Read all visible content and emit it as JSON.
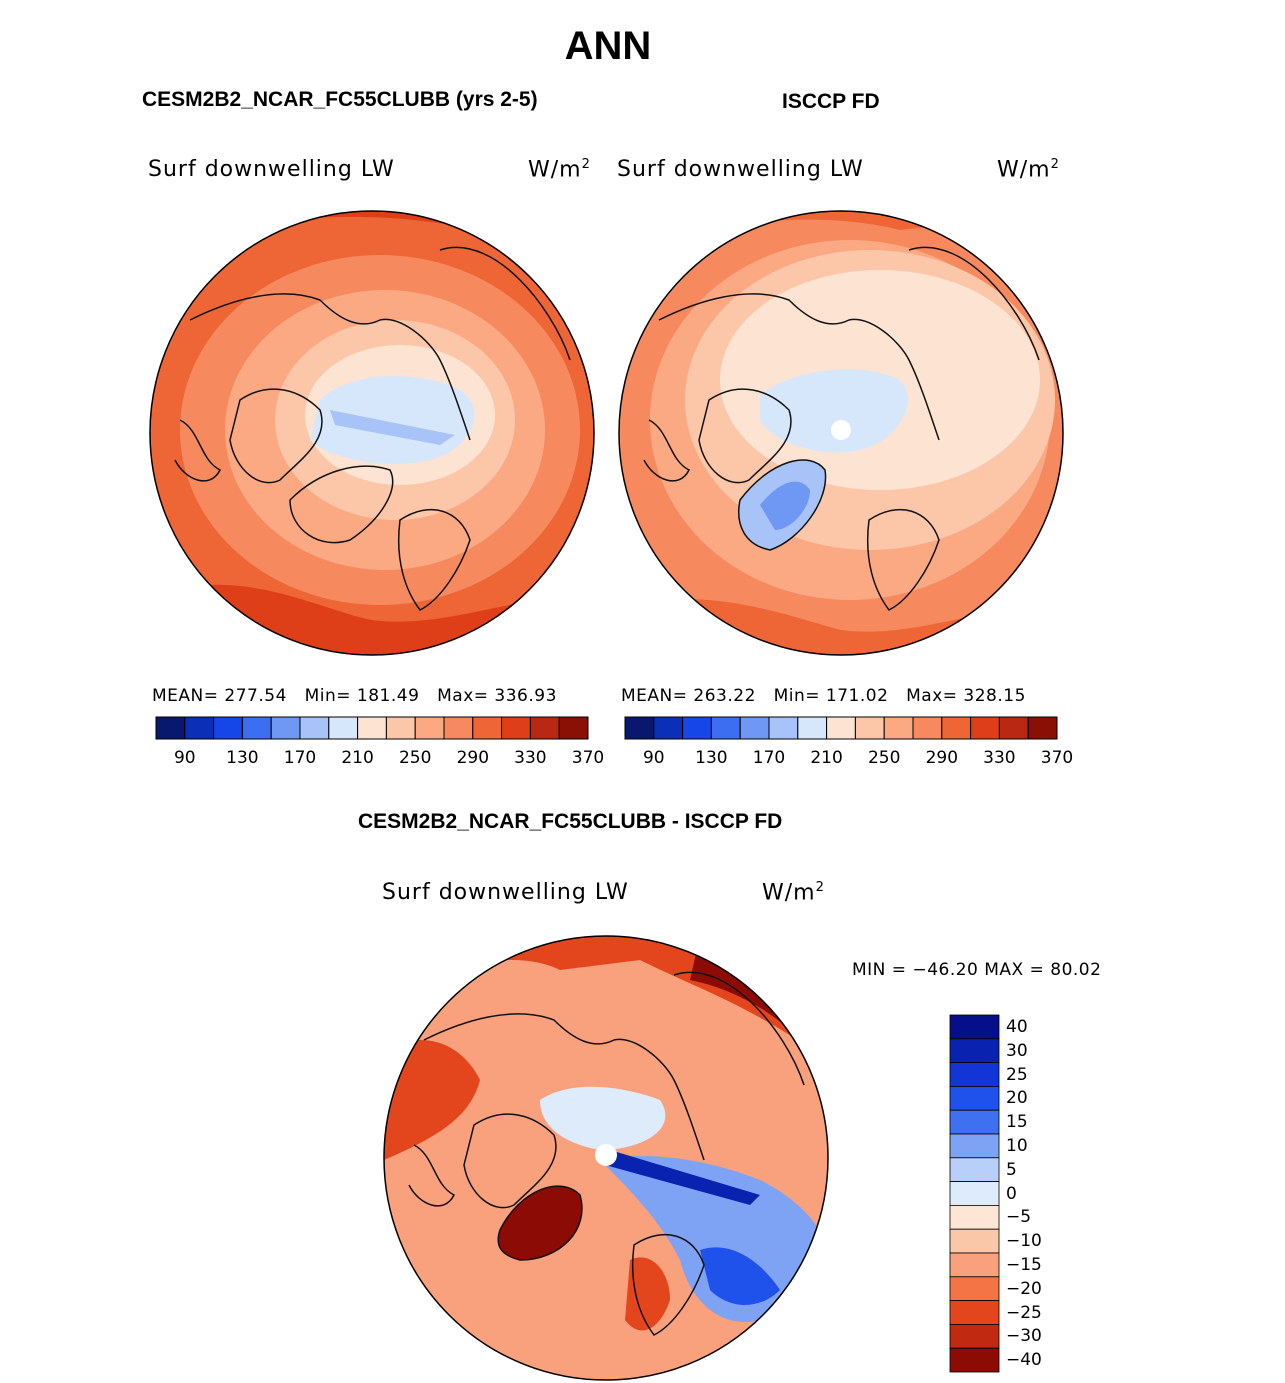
{
  "figure": {
    "season": "ANN",
    "test_title": "CESM2B2_NCAR_FC55CLUBB (yrs 2-5)",
    "ref_title": "ISCCP FD",
    "diff_title": "CESM2B2_NCAR_FC55CLUBB - ISCCP FD"
  },
  "colors": {
    "abs_scale": [
      "#08186e",
      "#0c2fb8",
      "#1746e8",
      "#3b6ef0",
      "#6f97f4",
      "#a7c3f8",
      "#d6e6fb",
      "#fde4d2",
      "#fcc7a8",
      "#fba983",
      "#f68a5e",
      "#ee6636",
      "#df3f18",
      "#b92812",
      "#8a1006"
    ],
    "diff_scale": [
      "#050f8a",
      "#0a22b0",
      "#1335d6",
      "#1f52ea",
      "#3e70ef",
      "#7ea2f4",
      "#b8cff9",
      "#deebfb",
      "#fde6d5",
      "#fbc7a9",
      "#f9a07c",
      "#f47446",
      "#e3461c",
      "#c12a10",
      "#8c0c05"
    ],
    "coast": "#111111"
  },
  "chart_data": [
    {
      "type": "heatmap",
      "panel": "test",
      "title": "CESM2B2_NCAR_FC55CLUBB (yrs 2-5)",
      "variable": "Surf downwelling LW",
      "units": "W/m",
      "units_exp": "2",
      "mean_label": "MEAN= 277.54",
      "min_label": "Min= 181.49",
      "max_label": "Max= 336.93",
      "stats": {
        "mean": 277.54,
        "min": 181.49,
        "max": 336.93
      },
      "colorbar_ticks": [
        "90",
        "130",
        "170",
        "210",
        "250",
        "290",
        "330",
        "370"
      ],
      "projection": "north polar stereographic"
    },
    {
      "type": "heatmap",
      "panel": "reference",
      "title": "ISCCP FD",
      "variable": "Surf downwelling LW",
      "units": "W/m",
      "units_exp": "2",
      "mean_label": "MEAN= 263.22",
      "min_label": "Min= 171.02",
      "max_label": "Max= 328.15",
      "stats": {
        "mean": 263.22,
        "min": 171.02,
        "max": 328.15
      },
      "colorbar_ticks": [
        "90",
        "130",
        "170",
        "210",
        "250",
        "290",
        "330",
        "370"
      ],
      "projection": "north polar stereographic"
    },
    {
      "type": "heatmap",
      "panel": "difference",
      "title": "CESM2B2_NCAR_FC55CLUBB - ISCCP FD",
      "variable": "Surf downwelling LW",
      "units": "W/m",
      "units_exp": "2",
      "minmax_label": "MIN = −46.20 MAX =  80.02",
      "stats": {
        "min": -46.2,
        "max": 80.02
      },
      "colorbar_ticks": [
        "40",
        "30",
        "25",
        "20",
        "15",
        "10",
        "5",
        "0",
        "−5",
        "−10",
        "−15",
        "−20",
        "−25",
        "−30",
        "−40"
      ],
      "projection": "north polar stereographic"
    }
  ]
}
